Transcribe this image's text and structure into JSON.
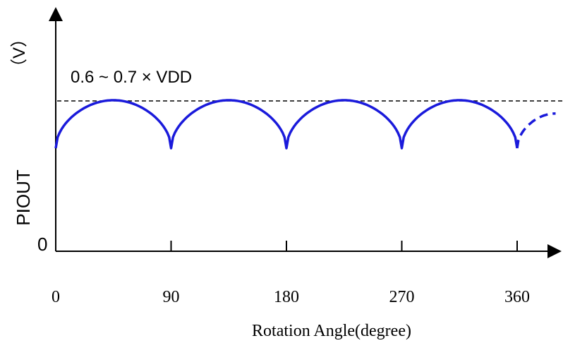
{
  "chart_data": {
    "type": "line",
    "title": "",
    "xlabel": "Rotation Angle(degree)",
    "ylabel": "PIOUT",
    "yunit": "（V）",
    "y_zero_label": "0",
    "xticks": [
      "0",
      "90",
      "180",
      "270",
      "360"
    ],
    "xlim": [
      0,
      390
    ],
    "threshold_label": "0.6 ~ 0.7 × VDD",
    "series": [
      {
        "style": "solid",
        "description_points": [
          [
            0,
            0.62
          ],
          [
            45,
            0.98
          ],
          [
            90,
            0.62
          ],
          [
            135,
            0.98
          ],
          [
            180,
            0.62
          ],
          [
            225,
            0.98
          ],
          [
            270,
            0.62
          ],
          [
            315,
            0.98
          ],
          [
            360,
            0.62
          ]
        ]
      },
      {
        "style": "dashed",
        "description_points": [
          [
            360,
            0.62
          ],
          [
            390,
            0.88
          ]
        ]
      }
    ],
    "colors": {
      "curve": "#1a1adb",
      "axis": "#000000",
      "threshold": "#000000"
    },
    "grid": false
  }
}
